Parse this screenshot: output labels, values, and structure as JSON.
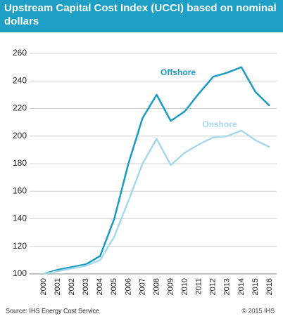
{
  "chart_data": {
    "type": "line",
    "title": "Upstream Capital Cost Index (UCCI) based on nominal dollars",
    "categories": [
      "2000",
      "2001",
      "2002",
      "2003",
      "2004",
      "2005",
      "2006",
      "2007",
      "2008",
      "2009",
      "2010",
      "2011",
      "2012",
      "2013",
      "2014",
      "2015",
      "2016"
    ],
    "series": [
      {
        "name": "Offshore",
        "color": "#1a9bc4",
        "values": [
          100,
          103,
          105,
          107,
          113,
          140,
          180,
          213,
          230,
          211,
          218,
          231,
          243,
          246,
          250,
          232,
          222
        ]
      },
      {
        "name": "Onshore",
        "color": "#a6d9ea",
        "values": [
          100,
          102,
          104,
          106,
          110,
          127,
          153,
          180,
          198,
          179,
          188,
          194,
          199,
          200,
          204,
          197,
          192
        ]
      }
    ],
    "ylim": [
      100,
      260
    ],
    "yticks": [
      100,
      120,
      140,
      160,
      180,
      200,
      220,
      240,
      260
    ],
    "grid": true,
    "source": "Source: IHS Energy Cost Service",
    "copyright": "© 2015 IHS"
  }
}
